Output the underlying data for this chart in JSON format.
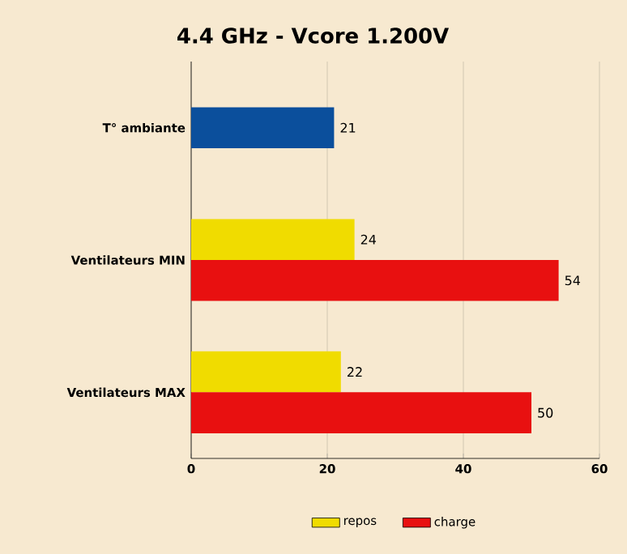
{
  "chart_data": {
    "type": "bar",
    "orientation": "horizontal",
    "title": "4.4 GHz - Vcore 1.200V",
    "categories": [
      "T° ambiante",
      "Ventilateurs MIN",
      "Ventilateurs MAX"
    ],
    "series": [
      {
        "color": "#0b4f9c",
        "values": [
          21,
          null,
          null
        ]
      },
      {
        "name": "repos",
        "color": "#f0dc00",
        "values": [
          null,
          24,
          22
        ]
      },
      {
        "name": "charge",
        "color": "#e81010",
        "values": [
          null,
          54,
          50
        ]
      }
    ],
    "xlim": [
      0,
      60
    ],
    "xticks": [
      0,
      20,
      40,
      60
    ],
    "grid": "x",
    "legend": "bottom",
    "data_labels": true
  }
}
